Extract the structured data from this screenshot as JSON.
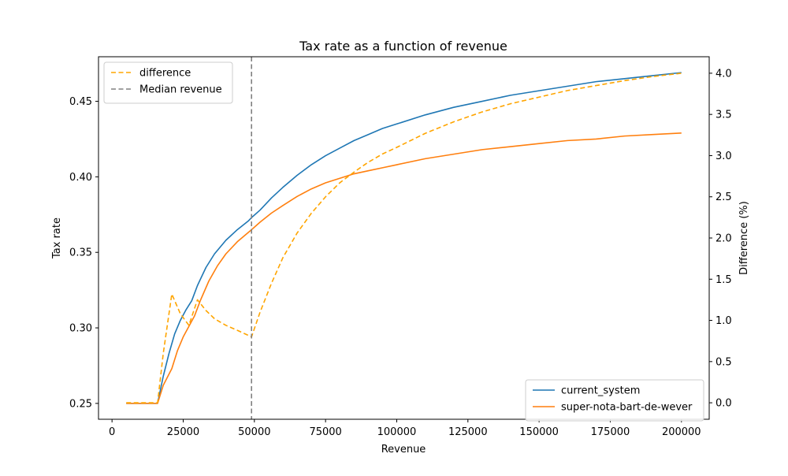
{
  "chart_data": {
    "type": "line",
    "title": "Tax rate as a function of revenue",
    "xlabel": "Revenue",
    "ylabel_left": "Tax rate",
    "ylabel_right": "Difference (%)",
    "xlim": [
      -4750,
      209750
    ],
    "ylim_left": [
      0.2395,
      0.4795
    ],
    "ylim_right": [
      -0.2,
      4.2
    ],
    "x_ticks": [
      0,
      25000,
      50000,
      75000,
      100000,
      125000,
      150000,
      175000,
      200000
    ],
    "y_left_ticks": [
      "0.25",
      "0.30",
      "0.35",
      "0.40",
      "0.45"
    ],
    "y_left_tick_values": [
      0.25,
      0.3,
      0.35,
      0.4,
      0.45
    ],
    "y_right_ticks": [
      "0.0",
      "0.5",
      "1.0",
      "1.5",
      "2.0",
      "2.5",
      "3.0",
      "3.5",
      "4.0"
    ],
    "y_right_tick_values": [
      0.0,
      0.5,
      1.0,
      1.5,
      2.0,
      2.5,
      3.0,
      3.5,
      4.0
    ],
    "grid": false,
    "series": [
      {
        "name": "current_system",
        "axis": "left",
        "style": "solid",
        "color": "#1f77b4",
        "points": [
          [
            5000,
            0.25
          ],
          [
            15500,
            0.25
          ],
          [
            16000,
            0.25
          ],
          [
            18000,
            0.268
          ],
          [
            20000,
            0.283
          ],
          [
            22000,
            0.296
          ],
          [
            24000,
            0.305
          ],
          [
            26000,
            0.312
          ],
          [
            28000,
            0.318
          ],
          [
            30000,
            0.328
          ],
          [
            33000,
            0.34
          ],
          [
            36000,
            0.349
          ],
          [
            40000,
            0.358
          ],
          [
            44000,
            0.365
          ],
          [
            48000,
            0.371
          ],
          [
            49000,
            0.373
          ],
          [
            52000,
            0.378
          ],
          [
            56000,
            0.386
          ],
          [
            60000,
            0.393
          ],
          [
            65000,
            0.401
          ],
          [
            70000,
            0.408
          ],
          [
            75000,
            0.414
          ],
          [
            80000,
            0.419
          ],
          [
            85000,
            0.424
          ],
          [
            90000,
            0.428
          ],
          [
            95000,
            0.432
          ],
          [
            100000,
            0.435
          ],
          [
            110000,
            0.441
          ],
          [
            120000,
            0.446
          ],
          [
            130000,
            0.45
          ],
          [
            140000,
            0.454
          ],
          [
            150000,
            0.457
          ],
          [
            160000,
            0.46
          ],
          [
            170000,
            0.463
          ],
          [
            180000,
            0.465
          ],
          [
            190000,
            0.467
          ],
          [
            200000,
            0.469
          ]
        ]
      },
      {
        "name": "super-nota-bart-de-wever",
        "axis": "left",
        "style": "solid",
        "color": "#ff7f0e",
        "points": [
          [
            5000,
            0.25
          ],
          [
            15500,
            0.25
          ],
          [
            16000,
            0.25
          ],
          [
            18000,
            0.262
          ],
          [
            21000,
            0.273
          ],
          [
            23000,
            0.285
          ],
          [
            25000,
            0.294
          ],
          [
            27000,
            0.301
          ],
          [
            29000,
            0.308
          ],
          [
            31000,
            0.318
          ],
          [
            34000,
            0.331
          ],
          [
            37000,
            0.341
          ],
          [
            40000,
            0.349
          ],
          [
            44000,
            0.357
          ],
          [
            49000,
            0.365
          ],
          [
            52000,
            0.37
          ],
          [
            56000,
            0.376
          ],
          [
            60000,
            0.381
          ],
          [
            65000,
            0.387
          ],
          [
            70000,
            0.392
          ],
          [
            75000,
            0.396
          ],
          [
            80000,
            0.399
          ],
          [
            85000,
            0.402
          ],
          [
            90000,
            0.404
          ],
          [
            95000,
            0.406
          ],
          [
            100000,
            0.408
          ],
          [
            110000,
            0.412
          ],
          [
            120000,
            0.415
          ],
          [
            130000,
            0.418
          ],
          [
            140000,
            0.42
          ],
          [
            150000,
            0.422
          ],
          [
            160000,
            0.424
          ],
          [
            170000,
            0.425
          ],
          [
            180000,
            0.427
          ],
          [
            190000,
            0.428
          ],
          [
            200000,
            0.429
          ]
        ]
      },
      {
        "name": "difference",
        "axis": "right",
        "style": "dashed",
        "color": "#ffa500",
        "points": [
          [
            5000,
            0.0
          ],
          [
            15500,
            0.0
          ],
          [
            16000,
            0.0
          ],
          [
            18000,
            0.6
          ],
          [
            21000,
            1.32
          ],
          [
            24000,
            1.08
          ],
          [
            27000,
            0.94
          ],
          [
            30000,
            1.25
          ],
          [
            33000,
            1.12
          ],
          [
            36000,
            1.02
          ],
          [
            40000,
            0.94
          ],
          [
            44000,
            0.88
          ],
          [
            49000,
            0.8
          ],
          [
            52000,
            1.1
          ],
          [
            56000,
            1.45
          ],
          [
            60000,
            1.76
          ],
          [
            65000,
            2.06
          ],
          [
            70000,
            2.3
          ],
          [
            75000,
            2.5
          ],
          [
            80000,
            2.67
          ],
          [
            85000,
            2.8
          ],
          [
            90000,
            2.92
          ],
          [
            95000,
            3.02
          ],
          [
            100000,
            3.1
          ],
          [
            110000,
            3.27
          ],
          [
            120000,
            3.41
          ],
          [
            130000,
            3.53
          ],
          [
            140000,
            3.63
          ],
          [
            150000,
            3.71
          ],
          [
            160000,
            3.79
          ],
          [
            170000,
            3.85
          ],
          [
            180000,
            3.91
          ],
          [
            190000,
            3.96
          ],
          [
            200000,
            4.0
          ]
        ]
      }
    ],
    "vline": {
      "label": "Median revenue",
      "x": 49000,
      "style": "dashed",
      "color": "#808080"
    },
    "legend_upper_left": {
      "placement": "upper-left",
      "entries": [
        {
          "label": "difference",
          "color": "#ffa500",
          "style": "dashed"
        },
        {
          "label": "Median revenue",
          "color": "#808080",
          "style": "dashed"
        }
      ]
    },
    "legend_lower_right": {
      "placement": "lower-right",
      "entries": [
        {
          "label": "current_system",
          "color": "#1f77b4",
          "style": "solid"
        },
        {
          "label": "super-nota-bart-de-wever",
          "color": "#ff7f0e",
          "style": "solid"
        }
      ]
    }
  }
}
